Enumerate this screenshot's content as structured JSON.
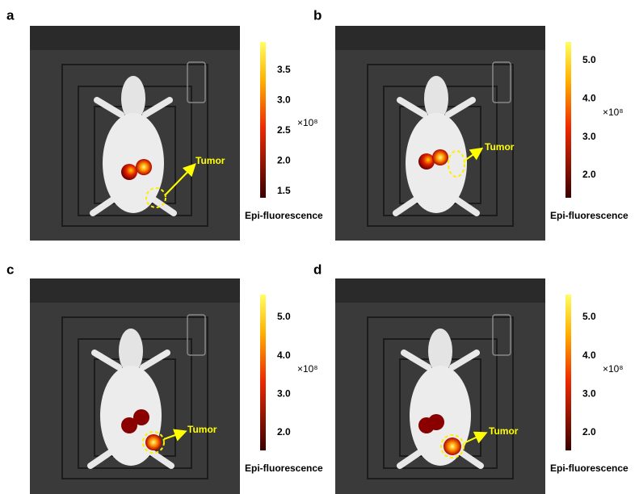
{
  "panels": [
    {
      "label": "a",
      "colorbar": {
        "ticks": [
          "3.5",
          "3.0",
          "2.5",
          "2.0",
          "1.5"
        ],
        "exponent": "×10⁸",
        "title": "Epi-fluorescence"
      },
      "annotation": "Tumor"
    },
    {
      "label": "b",
      "colorbar": {
        "ticks": [
          "5.0",
          "4.0",
          "3.0",
          "2.0"
        ],
        "exponent": "×10⁸",
        "title": "Epi-fluorescence"
      },
      "annotation": "Tumor"
    },
    {
      "label": "c",
      "colorbar": {
        "ticks": [
          "5.0",
          "4.0",
          "3.0",
          "2.0"
        ],
        "exponent": "×10⁸",
        "title": "Epi-fluorescence"
      },
      "annotation": "Tumor"
    },
    {
      "label": "d",
      "colorbar": {
        "ticks": [
          "5.0",
          "4.0",
          "3.0",
          "2.0"
        ],
        "exponent": "×10⁸",
        "title": "Epi-fluorescence"
      },
      "annotation": "Tumor"
    }
  ]
}
